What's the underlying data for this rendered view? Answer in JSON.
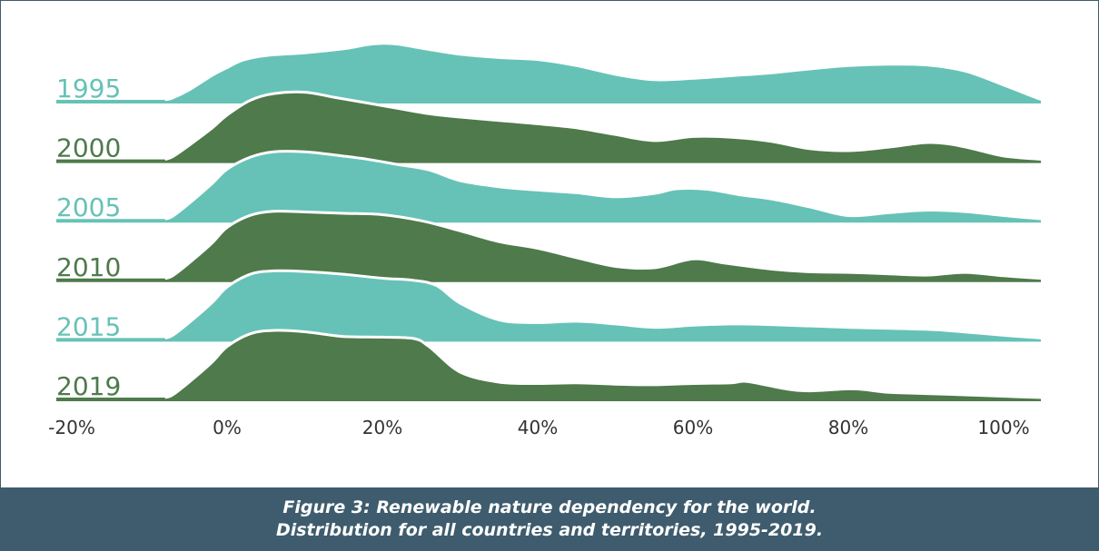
{
  "chart_data": {
    "type": "area",
    "subtype": "ridgeline",
    "title": "",
    "xlabel": "",
    "ylabel": "",
    "xlim": [
      -20,
      100
    ],
    "x_ticks": [
      "-20%",
      "0%",
      "20%",
      "40%",
      "60%",
      "80%",
      "100%"
    ],
    "x_tick_values": [
      -20,
      0,
      20,
      40,
      60,
      80,
      100
    ],
    "grid": false,
    "legend": "none",
    "colors": {
      "light": "#66c2b6",
      "dark": "#4f7a4b"
    },
    "series": [
      {
        "name": "1995",
        "color": "light",
        "points": [
          [
            -8,
            0
          ],
          [
            -7,
            0.03
          ],
          [
            -5,
            0.14
          ],
          [
            -2,
            0.36
          ],
          [
            0,
            0.48
          ],
          [
            2,
            0.59
          ],
          [
            5,
            0.66
          ],
          [
            10,
            0.7
          ],
          [
            15,
            0.76
          ],
          [
            18,
            0.82
          ],
          [
            20,
            0.84
          ],
          [
            22,
            0.83
          ],
          [
            25,
            0.77
          ],
          [
            30,
            0.68
          ],
          [
            35,
            0.63
          ],
          [
            40,
            0.6
          ],
          [
            45,
            0.51
          ],
          [
            50,
            0.38
          ],
          [
            55,
            0.3
          ],
          [
            60,
            0.32
          ],
          [
            65,
            0.36
          ],
          [
            70,
            0.4
          ],
          [
            75,
            0.46
          ],
          [
            80,
            0.51
          ],
          [
            85,
            0.53
          ],
          [
            90,
            0.52
          ],
          [
            95,
            0.43
          ],
          [
            100,
            0.22
          ],
          [
            104,
            0.04
          ],
          [
            105,
            0
          ]
        ]
      },
      {
        "name": "2000",
        "color": "dark",
        "points": [
          [
            -8,
            0
          ],
          [
            -7,
            0.04
          ],
          [
            -5,
            0.2
          ],
          [
            -2,
            0.46
          ],
          [
            0,
            0.66
          ],
          [
            3,
            0.88
          ],
          [
            6,
            0.98
          ],
          [
            10,
            1.0
          ],
          [
            14,
            0.92
          ],
          [
            18,
            0.84
          ],
          [
            22,
            0.76
          ],
          [
            26,
            0.68
          ],
          [
            30,
            0.63
          ],
          [
            35,
            0.58
          ],
          [
            40,
            0.53
          ],
          [
            45,
            0.47
          ],
          [
            50,
            0.37
          ],
          [
            55,
            0.28
          ],
          [
            60,
            0.34
          ],
          [
            65,
            0.33
          ],
          [
            70,
            0.27
          ],
          [
            75,
            0.16
          ],
          [
            80,
            0.13
          ],
          [
            85,
            0.18
          ],
          [
            90,
            0.25
          ],
          [
            93,
            0.23
          ],
          [
            96,
            0.16
          ],
          [
            100,
            0.05
          ],
          [
            105,
            0
          ]
        ]
      },
      {
        "name": "2005",
        "color": "light",
        "points": [
          [
            -8,
            0
          ],
          [
            -7,
            0.04
          ],
          [
            -5,
            0.22
          ],
          [
            -2,
            0.52
          ],
          [
            0,
            0.74
          ],
          [
            3,
            0.92
          ],
          [
            6,
            1.0
          ],
          [
            10,
            1.0
          ],
          [
            14,
            0.95
          ],
          [
            18,
            0.89
          ],
          [
            22,
            0.81
          ],
          [
            26,
            0.73
          ],
          [
            30,
            0.57
          ],
          [
            35,
            0.48
          ],
          [
            40,
            0.43
          ],
          [
            45,
            0.39
          ],
          [
            50,
            0.33
          ],
          [
            55,
            0.38
          ],
          [
            58,
            0.45
          ],
          [
            62,
            0.44
          ],
          [
            66,
            0.36
          ],
          [
            70,
            0.3
          ],
          [
            75,
            0.18
          ],
          [
            80,
            0.05
          ],
          [
            85,
            0.09
          ],
          [
            90,
            0.13
          ],
          [
            95,
            0.11
          ],
          [
            100,
            0.05
          ],
          [
            105,
            0
          ]
        ]
      },
      {
        "name": "2010",
        "color": "dark",
        "points": [
          [
            -8,
            0
          ],
          [
            -7,
            0.04
          ],
          [
            -5,
            0.22
          ],
          [
            -2,
            0.52
          ],
          [
            0,
            0.76
          ],
          [
            3,
            0.94
          ],
          [
            6,
            1.0
          ],
          [
            10,
            0.99
          ],
          [
            15,
            0.97
          ],
          [
            20,
            0.95
          ],
          [
            25,
            0.86
          ],
          [
            30,
            0.71
          ],
          [
            35,
            0.55
          ],
          [
            40,
            0.45
          ],
          [
            45,
            0.31
          ],
          [
            50,
            0.18
          ],
          [
            55,
            0.16
          ],
          [
            60,
            0.29
          ],
          [
            64,
            0.23
          ],
          [
            70,
            0.14
          ],
          [
            75,
            0.1
          ],
          [
            80,
            0.09
          ],
          [
            85,
            0.07
          ],
          [
            90,
            0.05
          ],
          [
            95,
            0.09
          ],
          [
            100,
            0.04
          ],
          [
            105,
            0
          ]
        ]
      },
      {
        "name": "2015",
        "color": "light",
        "points": [
          [
            -8,
            0
          ],
          [
            -7,
            0.04
          ],
          [
            -5,
            0.22
          ],
          [
            -2,
            0.52
          ],
          [
            0,
            0.76
          ],
          [
            3,
            0.95
          ],
          [
            6,
            1.0
          ],
          [
            10,
            0.99
          ],
          [
            15,
            0.95
          ],
          [
            20,
            0.89
          ],
          [
            24,
            0.86
          ],
          [
            27,
            0.78
          ],
          [
            30,
            0.52
          ],
          [
            35,
            0.27
          ],
          [
            40,
            0.23
          ],
          [
            45,
            0.25
          ],
          [
            50,
            0.21
          ],
          [
            55,
            0.16
          ],
          [
            60,
            0.19
          ],
          [
            65,
            0.21
          ],
          [
            70,
            0.2
          ],
          [
            80,
            0.16
          ],
          [
            90,
            0.13
          ],
          [
            95,
            0.09
          ],
          [
            100,
            0.04
          ],
          [
            105,
            0
          ]
        ]
      },
      {
        "name": "2019",
        "color": "dark",
        "points": [
          [
            -8,
            0
          ],
          [
            -7,
            0.04
          ],
          [
            -5,
            0.22
          ],
          [
            -2,
            0.52
          ],
          [
            0,
            0.76
          ],
          [
            3,
            0.95
          ],
          [
            6,
            1.0
          ],
          [
            10,
            0.98
          ],
          [
            15,
            0.91
          ],
          [
            20,
            0.9
          ],
          [
            24,
            0.88
          ],
          [
            26,
            0.76
          ],
          [
            30,
            0.38
          ],
          [
            35,
            0.23
          ],
          [
            40,
            0.21
          ],
          [
            45,
            0.22
          ],
          [
            50,
            0.2
          ],
          [
            55,
            0.19
          ],
          [
            60,
            0.21
          ],
          [
            65,
            0.22
          ],
          [
            67,
            0.24
          ],
          [
            72,
            0.13
          ],
          [
            75,
            0.1
          ],
          [
            80,
            0.13
          ],
          [
            82,
            0.12
          ],
          [
            85,
            0.08
          ],
          [
            90,
            0.06
          ],
          [
            95,
            0.04
          ],
          [
            100,
            0.02
          ],
          [
            105,
            0
          ]
        ]
      }
    ]
  },
  "caption": {
    "line1": "Figure 3: Renewable nature dependency for the world.",
    "line2": "Distribution for all countries and territories, 1995-2019."
  }
}
